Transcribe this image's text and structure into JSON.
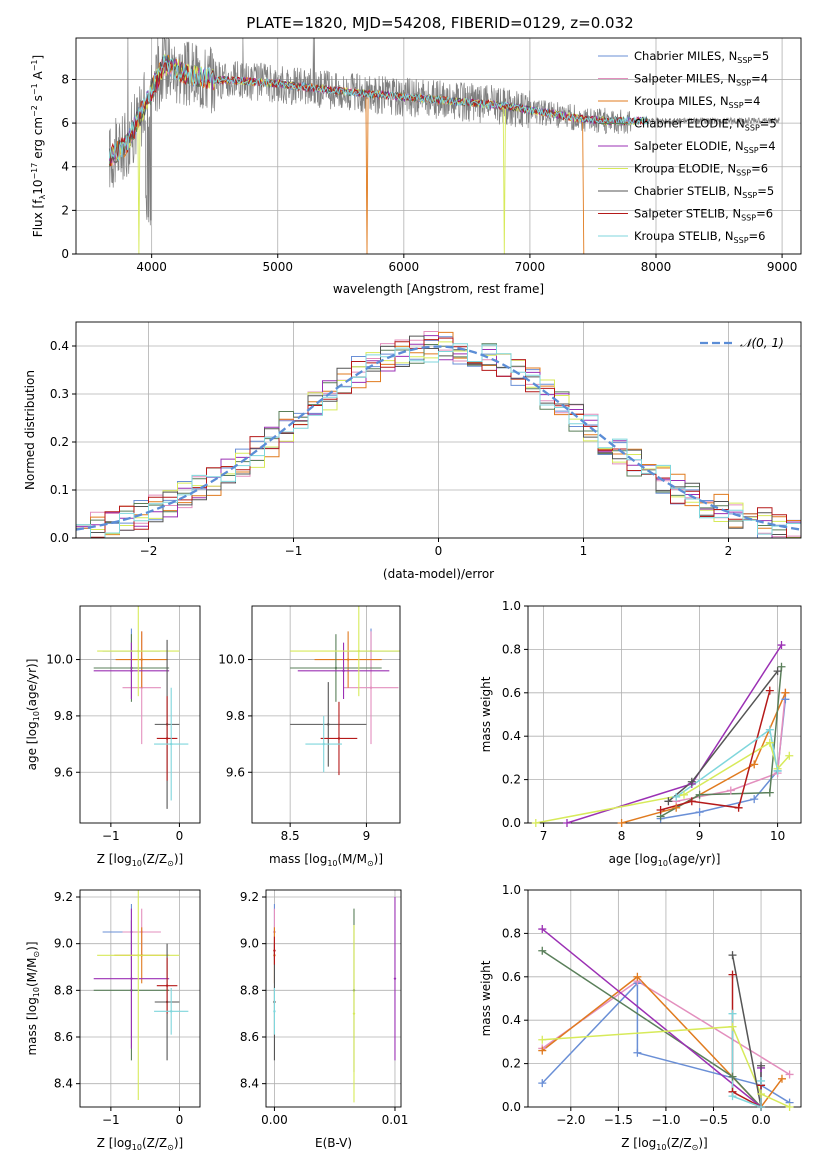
{
  "figure_title": "PLATE=1820, MJD=54208, FIBERID=0129, z=0.032",
  "colors": {
    "Chabrier MILES": "#6a8fd6",
    "Salpeter MILES": "#e38fbe",
    "Kroupa MILES": "#e07b1f",
    "Chabrier ELODIE": "#5a7f5a",
    "Salpeter ELODIE": "#9b30b4",
    "Kroupa ELODIE": "#d7ea5a",
    "Chabrier STELIB": "#555555",
    "Salpeter STELIB": "#b51a1a",
    "Kroupa STELIB": "#7fd6dc",
    "normal_fit": "#5b8dd6",
    "data": "#7f7f7f"
  },
  "chart_data": [
    {
      "id": "spectrum",
      "type": "line",
      "title": "PLATE=1820, MJD=54208, FIBERID=0129, z=0.032",
      "xlabel": "wavelength [Angstrom, rest frame]",
      "ylabel_parts": [
        "Flux [f",
        "λ",
        "10",
        "−17",
        " erg cm",
        "−2",
        " s",
        "−1",
        " A",
        "−1",
        "]"
      ],
      "xlim": [
        3400,
        9150
      ],
      "ylim": [
        0,
        9.9
      ],
      "xticks": [
        4000,
        5000,
        6000,
        7000,
        8000,
        9000
      ],
      "yticks": [
        0,
        2,
        4,
        6,
        8
      ],
      "legend_location": "upper right",
      "legend": [
        {
          "name": "Chabrier MILES, N",
          "sub": "SSP",
          "suffix": "=5"
        },
        {
          "name": "Salpeter MILES, N",
          "sub": "SSP",
          "suffix": "=4"
        },
        {
          "name": "Kroupa MILES, N",
          "sub": "SSP",
          "suffix": "=4"
        },
        {
          "name": "Chabrier ELODIE, N",
          "sub": "SSP",
          "suffix": "=5"
        },
        {
          "name": "Salpeter ELODIE, N",
          "sub": "SSP",
          "suffix": "=4"
        },
        {
          "name": "Kroupa ELODIE, N",
          "sub": "SSP",
          "suffix": "=6"
        },
        {
          "name": "Chabrier STELIB, N",
          "sub": "SSP",
          "suffix": "=5"
        },
        {
          "name": "Salpeter STELIB, N",
          "sub": "SSP",
          "suffix": "=6"
        },
        {
          "name": "Kroupa STELIB, N",
          "sub": "SSP",
          "suffix": "=6"
        }
      ],
      "approx_continuum": [
        [
          3660,
          4.4
        ],
        [
          3800,
          5.0
        ],
        [
          3950,
          6.9
        ],
        [
          4100,
          8.7
        ],
        [
          4300,
          8.2
        ],
        [
          4500,
          8.0
        ],
        [
          4800,
          7.9
        ],
        [
          5000,
          7.8
        ],
        [
          5300,
          7.6
        ],
        [
          5600,
          7.4
        ],
        [
          6000,
          7.2
        ],
        [
          6400,
          7.0
        ],
        [
          6800,
          6.8
        ],
        [
          7000,
          6.6
        ],
        [
          7200,
          6.4
        ],
        [
          7400,
          6.2
        ],
        [
          7600,
          6.1
        ],
        [
          7900,
          6.1
        ]
      ]
    },
    {
      "id": "residuals",
      "type": "bar",
      "xlabel": "(data-model)/error",
      "ylabel": "Normed distribution",
      "xlim": [
        -2.5,
        2.5
      ],
      "ylim": [
        0,
        0.45
      ],
      "xticks": [
        -2,
        -1,
        0,
        1,
        2
      ],
      "yticks": [
        0.0,
        0.1,
        0.2,
        0.3,
        0.4
      ],
      "legend": [
        "𝒩(0, 1)"
      ],
      "legend_location": "upper right",
      "normal_mean": 0,
      "normal_sigma": 1
    },
    {
      "id": "age_vs_Z",
      "type": "scatter",
      "xlabel_parts": [
        "Z [log",
        "10",
        "(Z/Z",
        "⊙",
        ")]"
      ],
      "ylabel_parts": [
        "age  [log",
        "10",
        "(age/yr)]"
      ],
      "xlim": [
        -1.45,
        0.3
      ],
      "ylim": [
        9.42,
        10.19
      ],
      "xticks": [
        -1,
        0
      ],
      "yticks": [
        9.6,
        9.8,
        10.0
      ],
      "points": [
        {
          "model": "Chabrier MILES",
          "x": -0.7,
          "xerr": 0.42,
          "y": 10.03,
          "yerr": 0.08
        },
        {
          "model": "Salpeter MILES",
          "x": -0.55,
          "xerr": 0.28,
          "y": 9.9,
          "yerr": 0.2
        },
        {
          "model": "Kroupa MILES",
          "x": -0.55,
          "xerr": 0.38,
          "y": 10.0,
          "yerr": 0.1
        },
        {
          "model": "Chabrier ELODIE",
          "x": -0.7,
          "xerr": 0.55,
          "y": 9.97,
          "yerr": 0.12
        },
        {
          "model": "Salpeter ELODIE",
          "x": -0.7,
          "xerr": 0.55,
          "y": 9.96,
          "yerr": 0.1
        },
        {
          "model": "Kroupa ELODIE",
          "x": -0.6,
          "xerr": 0.6,
          "y": 10.03,
          "yerr": 0.16
        },
        {
          "model": "Chabrier STELIB",
          "x": -0.18,
          "xerr": 0.18,
          "y": 9.77,
          "yerr": 0.3
        },
        {
          "model": "Salpeter STELIB",
          "x": -0.18,
          "xerr": 0.15,
          "y": 9.72,
          "yerr": 0.15
        },
        {
          "model": "Kroupa STELIB",
          "x": -0.12,
          "xerr": 0.25,
          "y": 9.7,
          "yerr": 0.2
        }
      ]
    },
    {
      "id": "age_vs_mass",
      "type": "scatter",
      "xlabel_parts": [
        "mass [log",
        "10",
        "(M/M",
        "⊙",
        ")]"
      ],
      "ylabel": "",
      "xlim": [
        8.25,
        9.22
      ],
      "ylim": [
        9.42,
        10.19
      ],
      "xticks": [
        8.5,
        9.0
      ],
      "yticks": [
        9.6,
        9.8,
        10.0
      ],
      "points": [
        {
          "model": "Chabrier MILES",
          "x": 9.03,
          "xerr": 0.18,
          "y": 10.03,
          "yerr": 0.08
        },
        {
          "model": "Salpeter MILES",
          "x": 9.03,
          "xerr": 0.18,
          "y": 9.9,
          "yerr": 0.2
        },
        {
          "model": "Kroupa MILES",
          "x": 8.88,
          "xerr": 0.22,
          "y": 10.0,
          "yerr": 0.1
        },
        {
          "model": "Chabrier ELODIE",
          "x": 8.8,
          "xerr": 0.3,
          "y": 9.97,
          "yerr": 0.12
        },
        {
          "model": "Salpeter ELODIE",
          "x": 8.85,
          "xerr": 0.3,
          "y": 9.96,
          "yerr": 0.1
        },
        {
          "model": "Kroupa ELODIE",
          "x": 8.95,
          "xerr": 0.45,
          "y": 10.03,
          "yerr": 0.16
        },
        {
          "model": "Chabrier STELIB",
          "x": 8.75,
          "xerr": 0.25,
          "y": 9.77,
          "yerr": 0.15
        },
        {
          "model": "Salpeter STELIB",
          "x": 8.82,
          "xerr": 0.12,
          "y": 9.72,
          "yerr": 0.13
        },
        {
          "model": "Kroupa STELIB",
          "x": 8.72,
          "xerr": 0.12,
          "y": 9.7,
          "yerr": 0.1
        }
      ]
    },
    {
      "id": "massweight_vs_age",
      "type": "line",
      "xlabel_parts": [
        "age  [log",
        "10",
        "(age/yr)]"
      ],
      "ylabel": "mass weight",
      "xlim": [
        6.8,
        10.3
      ],
      "ylim": [
        0,
        1.0
      ],
      "xticks": [
        7,
        8,
        9,
        10
      ],
      "yticks": [
        0.0,
        0.2,
        0.4,
        0.6,
        0.8,
        1.0
      ],
      "series": [
        {
          "model": "Chabrier MILES",
          "x": [
            8.5,
            9.0,
            9.7,
            10.0,
            10.1
          ],
          "y": [
            0.02,
            0.05,
            0.11,
            0.24,
            0.57
          ]
        },
        {
          "model": "Salpeter MILES",
          "x": [
            8.7,
            9.4,
            10.0,
            10.1
          ],
          "y": [
            0.1,
            0.15,
            0.23,
            0.6
          ]
        },
        {
          "model": "Kroupa MILES",
          "x": [
            8.0,
            8.7,
            9.7,
            10.1
          ],
          "y": [
            0.0,
            0.07,
            0.27,
            0.6
          ]
        },
        {
          "model": "Chabrier ELODIE",
          "x": [
            8.5,
            9.0,
            9.9,
            10.05
          ],
          "y": [
            0.03,
            0.13,
            0.14,
            0.72
          ]
        },
        {
          "model": "Salpeter ELODIE",
          "x": [
            7.3,
            8.9,
            10.05
          ],
          "y": [
            0.0,
            0.18,
            0.82
          ]
        },
        {
          "model": "Kroupa ELODIE",
          "x": [
            6.9,
            8.8,
            9.9,
            10.0,
            10.15
          ],
          "y": [
            0.0,
            0.13,
            0.37,
            0.25,
            0.31
          ]
        },
        {
          "model": "Chabrier STELIB",
          "x": [
            8.6,
            8.9,
            10.0
          ],
          "y": [
            0.1,
            0.19,
            0.7
          ]
        },
        {
          "model": "Salpeter STELIB",
          "x": [
            8.5,
            8.9,
            9.5,
            9.9
          ],
          "y": [
            0.06,
            0.1,
            0.07,
            0.61
          ]
        },
        {
          "model": "Kroupa STELIB",
          "x": [
            8.7,
            9.9,
            10.0
          ],
          "y": [
            0.12,
            0.43,
            0.24
          ]
        }
      ]
    },
    {
      "id": "mass_vs_Z",
      "type": "scatter",
      "xlabel_parts": [
        "Z [log",
        "10",
        "(Z/Z",
        "⊙",
        ")]"
      ],
      "ylabel_parts": [
        "mass [log",
        "10",
        "(M/M",
        "⊙",
        ")]"
      ],
      "xlim": [
        -1.45,
        0.3
      ],
      "ylim": [
        8.3,
        9.23
      ],
      "xticks": [
        -1,
        0
      ],
      "yticks": [
        8.4,
        8.6,
        8.8,
        9.0,
        9.2
      ],
      "points": [
        {
          "model": "Chabrier MILES",
          "x": -0.7,
          "xerr": 0.42,
          "y": 9.05,
          "yerr": 0.12
        },
        {
          "model": "Salpeter MILES",
          "x": -0.55,
          "xerr": 0.28,
          "y": 9.05,
          "yerr": 0.1
        },
        {
          "model": "Kroupa MILES",
          "x": -0.55,
          "xerr": 0.4,
          "y": 8.95,
          "yerr": 0.12
        },
        {
          "model": "Chabrier ELODIE",
          "x": -0.7,
          "xerr": 0.55,
          "y": 8.8,
          "yerr": 0.3
        },
        {
          "model": "Salpeter ELODIE",
          "x": -0.7,
          "xerr": 0.55,
          "y": 8.85,
          "yerr": 0.3
        },
        {
          "model": "Kroupa ELODIE",
          "x": -0.6,
          "xerr": 0.6,
          "y": 8.95,
          "yerr": 0.62
        },
        {
          "model": "Chabrier STELIB",
          "x": -0.18,
          "xerr": 0.18,
          "y": 8.75,
          "yerr": 0.25
        },
        {
          "model": "Salpeter STELIB",
          "x": -0.18,
          "xerr": 0.15,
          "y": 8.82,
          "yerr": 0.12
        },
        {
          "model": "Kroupa STELIB",
          "x": -0.12,
          "xerr": 0.25,
          "y": 8.71,
          "yerr": 0.1
        }
      ]
    },
    {
      "id": "mass_vs_EBV",
      "type": "scatter",
      "xlabel": "E(B-V)",
      "ylabel": "",
      "xlim": [
        -0.0007,
        0.0105
      ],
      "ylim": [
        8.3,
        9.23
      ],
      "xticks": [
        0.0,
        0.01
      ],
      "xtick_labels": [
        "0.00",
        "0.01"
      ],
      "yticks": [
        8.4,
        8.6,
        8.8,
        9.0,
        9.2
      ],
      "points": [
        {
          "model": "Chabrier MILES",
          "x": 0.0,
          "y": 9.05,
          "yerr": 0.12
        },
        {
          "model": "Salpeter MILES",
          "x": 0.0,
          "y": 9.05,
          "yerr": 0.1
        },
        {
          "model": "Kroupa MILES",
          "x": 0.0,
          "y": 8.95,
          "yerr": 0.12
        },
        {
          "model": "Chabrier ELODIE",
          "x": 0.0066,
          "y": 8.8,
          "yerr": 0.35
        },
        {
          "model": "Salpeter ELODIE",
          "x": 0.01,
          "y": 8.85,
          "yerr": 0.35
        },
        {
          "model": "Kroupa ELODIE",
          "x": 0.0066,
          "y": 8.7,
          "yerr": 0.38
        },
        {
          "model": "Chabrier STELIB",
          "x": 0.0,
          "y": 8.75,
          "yerr": 0.25
        },
        {
          "model": "Salpeter STELIB",
          "x": 0.0,
          "y": 8.97,
          "yerr": 0.06
        },
        {
          "model": "Kroupa STELIB",
          "x": 0.0,
          "y": 8.71,
          "yerr": 0.1
        }
      ]
    },
    {
      "id": "massweight_vs_Z",
      "type": "line",
      "xlabel_parts": [
        "Z [log",
        "10",
        "(Z/Z",
        "⊙",
        ")]"
      ],
      "ylabel": "mass weight",
      "xlim": [
        -2.45,
        0.42
      ],
      "ylim": [
        0,
        1.0
      ],
      "xticks": [
        -2.0,
        -1.5,
        -1.0,
        -0.5,
        0.0
      ],
      "xtick_labels": [
        "−2.0",
        "−1.5",
        "−1.0",
        "−0.5",
        "0.0"
      ],
      "yticks": [
        0.0,
        0.2,
        0.4,
        0.6,
        0.8,
        1.0
      ],
      "series": [
        {
          "model": "Chabrier MILES",
          "x": [
            -2.3,
            -1.3,
            -1.3,
            0.0,
            0.3
          ],
          "y": [
            0.11,
            0.57,
            0.25,
            0.1,
            0.02
          ]
        },
        {
          "model": "Salpeter MILES",
          "x": [
            -2.3,
            -1.3,
            0.3
          ],
          "y": [
            0.27,
            0.58,
            0.15
          ]
        },
        {
          "model": "Kroupa MILES",
          "x": [
            -2.3,
            -1.3,
            0.0,
            0.22
          ],
          "y": [
            0.26,
            0.6,
            0.0,
            0.13
          ]
        },
        {
          "model": "Chabrier ELODIE",
          "x": [
            -2.3,
            -0.3,
            0.0
          ],
          "y": [
            0.72,
            0.14,
            0.0
          ]
        },
        {
          "model": "Salpeter ELODIE",
          "x": [
            -2.3,
            0.0,
            0.0
          ],
          "y": [
            0.82,
            0.0,
            0.18
          ]
        },
        {
          "model": "Kroupa ELODIE",
          "x": [
            -2.3,
            -0.3,
            0.0,
            0.3
          ],
          "y": [
            0.31,
            0.37,
            0.06,
            0.0
          ]
        },
        {
          "model": "Chabrier STELIB",
          "x": [
            -0.3,
            0.0,
            0.0
          ],
          "y": [
            0.7,
            0.0,
            0.19
          ]
        },
        {
          "model": "Salpeter STELIB",
          "x": [
            -0.3,
            -0.3,
            0.0,
            0.0
          ],
          "y": [
            0.61,
            0.07,
            0.0,
            0.1
          ]
        },
        {
          "model": "Kroupa STELIB",
          "x": [
            -0.3,
            -0.3,
            0.0,
            0.0
          ],
          "y": [
            0.43,
            0.05,
            0.0,
            0.12
          ]
        }
      ]
    }
  ]
}
